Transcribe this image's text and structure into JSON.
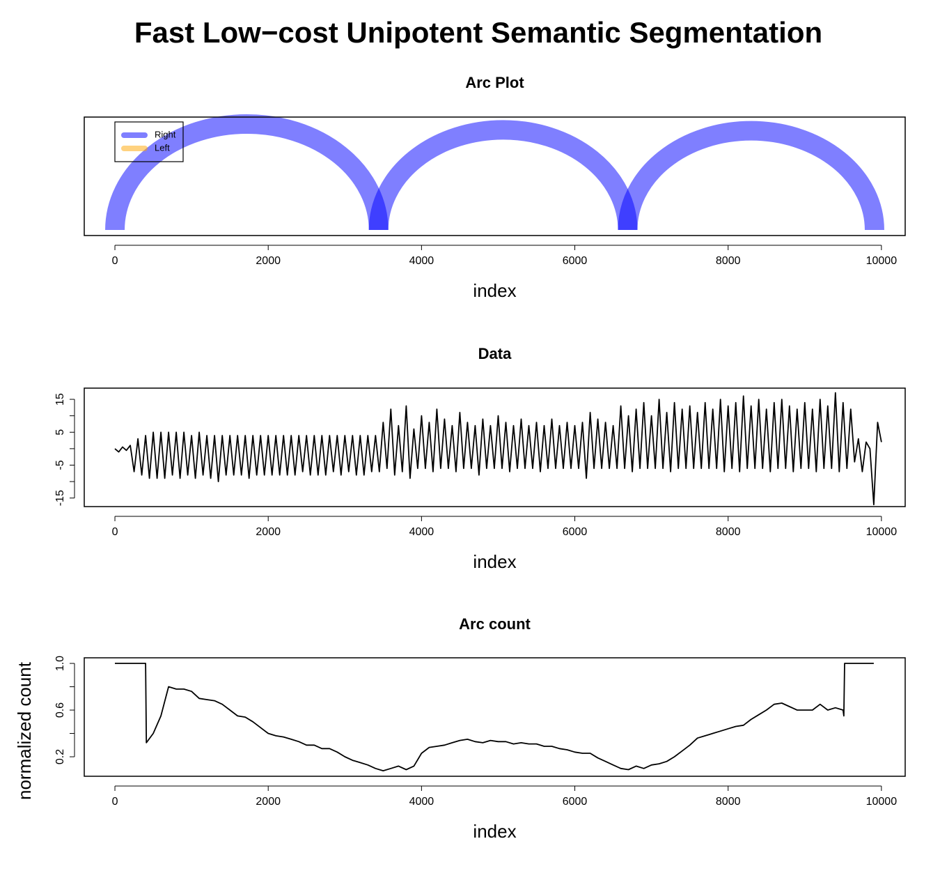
{
  "title": "Fast Low−cost Unipotent Semantic Segmentation",
  "chart_data": [
    {
      "type": "arc",
      "title": "Arc Plot",
      "xlabel": "index",
      "xlim": [
        -400,
        10310
      ],
      "xticks": [
        0,
        2000,
        4000,
        6000,
        8000,
        10000
      ],
      "legend": "topleft",
      "series": [
        {
          "name": "Right",
          "color": "#0000FF80",
          "arcs": [
            [
              0,
              3440
            ],
            [
              3440,
              6690
            ],
            [
              6690,
              9910
            ]
          ]
        },
        {
          "name": "Left",
          "color": "#FFA50080"
        }
      ]
    },
    {
      "type": "line",
      "title": "Data",
      "xlabel": "index",
      "xlim": [
        -400,
        10310
      ],
      "xticks": [
        0,
        2000,
        4000,
        6000,
        8000,
        10000
      ],
      "ylim": [
        -17.6,
        18.4
      ],
      "yticks": [
        -15,
        -5,
        5,
        15
      ],
      "yminorticks": [
        -10,
        0,
        10
      ],
      "series": [
        {
          "color": "#000000",
          "x": [
            0,
            50,
            100,
            150,
            200,
            250,
            300,
            350,
            400,
            450,
            500,
            550,
            600,
            650,
            700,
            750,
            800,
            850,
            900,
            950,
            1000,
            1050,
            1100,
            1150,
            1200,
            1250,
            1300,
            1350,
            1400,
            1450,
            1500,
            1550,
            1600,
            1650,
            1700,
            1750,
            1800,
            1850,
            1900,
            1950,
            2000,
            2050,
            2100,
            2150,
            2200,
            2250,
            2300,
            2350,
            2400,
            2450,
            2500,
            2550,
            2600,
            2650,
            2700,
            2750,
            2800,
            2850,
            2900,
            2950,
            3000,
            3050,
            3100,
            3150,
            3200,
            3250,
            3300,
            3350,
            3400,
            3450,
            3500,
            3550,
            3600,
            3650,
            3700,
            3750,
            3800,
            3850,
            3900,
            3950,
            4000,
            4050,
            4100,
            4150,
            4200,
            4250,
            4300,
            4350,
            4400,
            4450,
            4500,
            4550,
            4600,
            4650,
            4700,
            4750,
            4800,
            4850,
            4900,
            4950,
            5000,
            5050,
            5100,
            5150,
            5200,
            5250,
            5300,
            5350,
            5400,
            5450,
            5500,
            5550,
            5600,
            5650,
            5700,
            5750,
            5800,
            5850,
            5900,
            5950,
            6000,
            6050,
            6100,
            6150,
            6200,
            6250,
            6300,
            6350,
            6400,
            6450,
            6500,
            6550,
            6600,
            6650,
            6700,
            6750,
            6800,
            6850,
            6900,
            6950,
            7000,
            7050,
            7100,
            7150,
            7200,
            7250,
            7300,
            7350,
            7400,
            7450,
            7500,
            7550,
            7600,
            7650,
            7700,
            7750,
            7800,
            7850,
            7900,
            7950,
            8000,
            8050,
            8100,
            8150,
            8200,
            8250,
            8300,
            8350,
            8400,
            8450,
            8500,
            8550,
            8600,
            8650,
            8700,
            8750,
            8800,
            8850,
            8900,
            8950,
            9000,
            9050,
            9100,
            9150,
            9200,
            9250,
            9300,
            9350,
            9400,
            9450,
            9500,
            9550,
            9600,
            9650,
            9700,
            9750,
            9800,
            9850,
            9900,
            9950,
            10000
          ],
          "values": [
            0,
            -1,
            0.5,
            -0.5,
            1,
            -7,
            3,
            -8,
            4,
            -9,
            5,
            -9,
            5,
            -9,
            5,
            -8,
            5,
            -9,
            5,
            -8,
            4,
            -9,
            5,
            -8,
            4,
            -9,
            4,
            -10,
            4,
            -8,
            4,
            -8,
            4,
            -8,
            4,
            -9,
            4,
            -8,
            4,
            -8,
            4,
            -8,
            4,
            -8,
            4,
            -8,
            4,
            -8,
            4,
            -7,
            4,
            -8,
            4,
            -8,
            4,
            -8,
            4,
            -7,
            4,
            -8,
            4,
            -7,
            4,
            -8,
            4,
            -8,
            4,
            -7,
            4,
            -7,
            8,
            -6,
            12,
            -8,
            7,
            -7,
            13,
            -9,
            6,
            -6,
            10,
            -6,
            8,
            -7,
            12,
            -6,
            9,
            -6,
            7,
            -7,
            11,
            -6,
            8,
            -6,
            7,
            -8,
            9,
            -6,
            7,
            -6,
            10,
            -6,
            8,
            -7,
            7,
            -6,
            9,
            -6,
            7,
            -6,
            8,
            -7,
            7,
            -6,
            9,
            -6,
            7,
            -6,
            8,
            -6,
            7,
            -6,
            8,
            -9,
            11,
            -6,
            9,
            -6,
            8,
            -6,
            7,
            -6,
            13,
            -6,
            10,
            -7,
            12,
            -6,
            14,
            -6,
            10,
            -6,
            15,
            -6,
            11,
            -7,
            14,
            -6,
            12,
            -6,
            13,
            -6,
            11,
            -6,
            14,
            -6,
            12,
            -6,
            15,
            -7,
            13,
            -6,
            14,
            -7,
            16,
            -6,
            13,
            -6,
            15,
            -6,
            12,
            -7,
            14,
            -6,
            15,
            -6,
            13,
            -7,
            12,
            -6,
            14,
            -6,
            12,
            -7,
            15,
            -6,
            13,
            -6,
            17,
            -7,
            14,
            -6,
            12,
            -4,
            3,
            -7,
            2,
            0,
            -17,
            8,
            2
          ]
        }
      ]
    },
    {
      "type": "line",
      "title": "Arc count",
      "xlabel": "index",
      "ylabel": "normalized count",
      "xlim": [
        -400,
        10310
      ],
      "xticks": [
        0,
        2000,
        4000,
        6000,
        8000,
        10000
      ],
      "ylim": [
        0.033,
        1.048
      ],
      "yticks": [
        0.2,
        0.6,
        {
          "value": 1,
          "label": "1.0"
        }
      ],
      "yminorticks": [
        0.4,
        0.8
      ],
      "series": [
        {
          "color": "#000000",
          "x": [
            0,
            400,
            410,
            500,
            600,
            700,
            800,
            900,
            1000,
            1100,
            1200,
            1300,
            1400,
            1500,
            1600,
            1700,
            1800,
            1900,
            2000,
            2100,
            2200,
            2300,
            2400,
            2500,
            2600,
            2700,
            2800,
            2900,
            3000,
            3100,
            3200,
            3300,
            3400,
            3500,
            3600,
            3700,
            3800,
            3900,
            4000,
            4100,
            4200,
            4300,
            4400,
            4500,
            4600,
            4700,
            4800,
            4900,
            5000,
            5100,
            5200,
            5300,
            5400,
            5500,
            5600,
            5700,
            5800,
            5900,
            6000,
            6100,
            6200,
            6300,
            6400,
            6500,
            6600,
            6700,
            6800,
            6900,
            7000,
            7100,
            7200,
            7300,
            7400,
            7500,
            7600,
            7700,
            7800,
            7900,
            8000,
            8100,
            8200,
            8300,
            8400,
            8500,
            8600,
            8700,
            8800,
            8900,
            9000,
            9100,
            9200,
            9300,
            9400,
            9500,
            9510,
            9520,
            9900
          ],
          "values": [
            1,
            1,
            0.32,
            0.4,
            0.55,
            0.8,
            0.78,
            0.78,
            0.76,
            0.7,
            0.69,
            0.68,
            0.65,
            0.6,
            0.55,
            0.54,
            0.5,
            0.45,
            0.4,
            0.38,
            0.37,
            0.35,
            0.33,
            0.3,
            0.3,
            0.27,
            0.27,
            0.24,
            0.2,
            0.17,
            0.15,
            0.13,
            0.1,
            0.08,
            0.1,
            0.12,
            0.09,
            0.12,
            0.23,
            0.28,
            0.29,
            0.3,
            0.32,
            0.34,
            0.35,
            0.33,
            0.32,
            0.34,
            0.33,
            0.33,
            0.31,
            0.32,
            0.31,
            0.31,
            0.29,
            0.29,
            0.27,
            0.26,
            0.24,
            0.23,
            0.23,
            0.19,
            0.16,
            0.13,
            0.1,
            0.09,
            0.12,
            0.1,
            0.13,
            0.14,
            0.16,
            0.2,
            0.25,
            0.3,
            0.36,
            0.38,
            0.4,
            0.42,
            0.44,
            0.46,
            0.47,
            0.52,
            0.56,
            0.6,
            0.65,
            0.66,
            0.63,
            0.6,
            0.6,
            0.6,
            0.65,
            0.6,
            0.62,
            0.6,
            0.55,
            1,
            1
          ]
        }
      ]
    }
  ]
}
